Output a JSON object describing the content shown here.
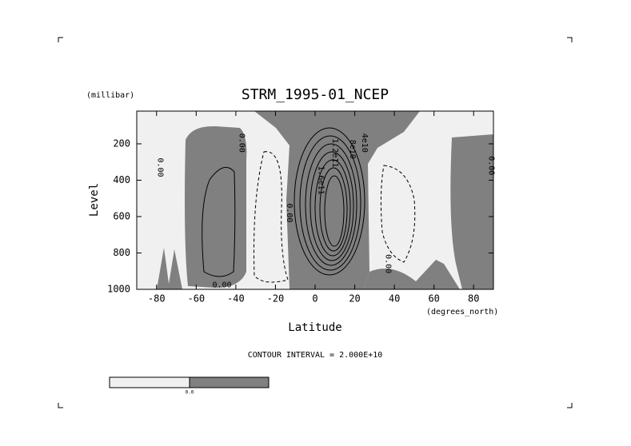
{
  "chart_data": {
    "type": "contour",
    "title": "STRM_1995-01_NCEP",
    "y_unit": "(millibar)",
    "y_label": "Level",
    "x_label": "Latitude",
    "x_unit": "(degrees_north)",
    "note": "CONTOUR INTERVAL = 2.000E+10",
    "xlim": [
      -90,
      90
    ],
    "xticks": [
      -80,
      -60,
      -40,
      -20,
      0,
      20,
      40,
      60,
      80
    ],
    "ylim": [
      1000,
      20
    ],
    "yticks": [
      200,
      400,
      600,
      800,
      1000
    ],
    "colors": [
      "#f0f0f0",
      "#808080"
    ],
    "colorbar_ticks": [
      {
        "value": 0,
        "label": "0.0"
      }
    ],
    "contour_labels": [
      {
        "value": 0,
        "label": "0.00",
        "x": -78,
        "y": 330,
        "rotate": true
      },
      {
        "value": 0,
        "label": "0.00",
        "x": -37,
        "y": 195,
        "rotate": true
      },
      {
        "value": 0,
        "label": "0.00",
        "x": -13,
        "y": 580,
        "rotate": true
      },
      {
        "value": 40000000000,
        "label": "4e10",
        "x": 25,
        "y": 195,
        "rotate": true
      },
      {
        "value": 80000000000,
        "label": "8e10",
        "x": 19,
        "y": 230,
        "rotate": true
      },
      {
        "value": 120000000000,
        "label": "1.2e11",
        "x": 10,
        "y": 250,
        "rotate": true
      },
      {
        "value": 160000000000,
        "label": "1.6e11",
        "x": 3,
        "y": 400,
        "rotate": true
      },
      {
        "value": 0,
        "label": "0.00",
        "x": 37,
        "y": 860,
        "rotate": true
      },
      {
        "value": 0,
        "label": "0.00",
        "x": 89,
        "y": 320,
        "rotate": true
      },
      {
        "value": 0,
        "label": "0.00",
        "x": -47,
        "y": 975,
        "rotate": false
      }
    ]
  }
}
